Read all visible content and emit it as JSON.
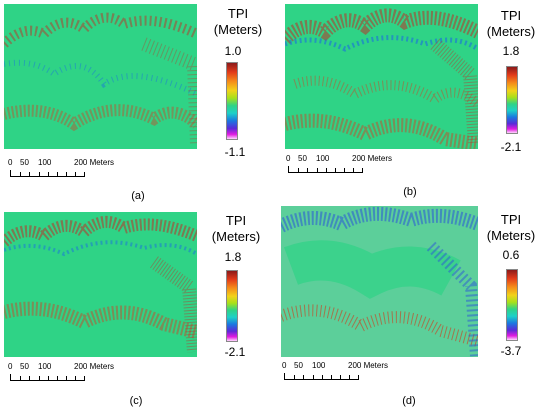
{
  "panels": [
    {
      "id": "a",
      "caption": "(a)",
      "legend_title_line1": "TPI",
      "legend_title_line2": "(Meters)",
      "max": "1.0",
      "min": "-1.1",
      "scale_labels": [
        "0",
        "50",
        "100",
        "200 Meters"
      ]
    },
    {
      "id": "b",
      "caption": "(b)",
      "legend_title_line1": "TPI",
      "legend_title_line2": "(Meters)",
      "max": "1.8",
      "min": "-2.1",
      "scale_labels": [
        "0",
        "50",
        "100",
        "200 Meters"
      ]
    },
    {
      "id": "c",
      "caption": "(c)",
      "legend_title_line1": "TPI",
      "legend_title_line2": "(Meters)",
      "max": "1.8",
      "min": "-2.1",
      "scale_labels": [
        "0",
        "50",
        "100",
        "200 Meters"
      ]
    },
    {
      "id": "d",
      "caption": "(d)",
      "legend_title_line1": "TPI",
      "legend_title_line2": "(Meters)",
      "max": "0.6",
      "min": "-3.7",
      "scale_labels": [
        "0",
        "50",
        "100",
        "200 Meters"
      ]
    }
  ],
  "colors": {
    "base_green": "#2fd386",
    "texture_dark": "#1f8f5a",
    "high": "#8b1a1a",
    "low": "#ffd6ff"
  }
}
